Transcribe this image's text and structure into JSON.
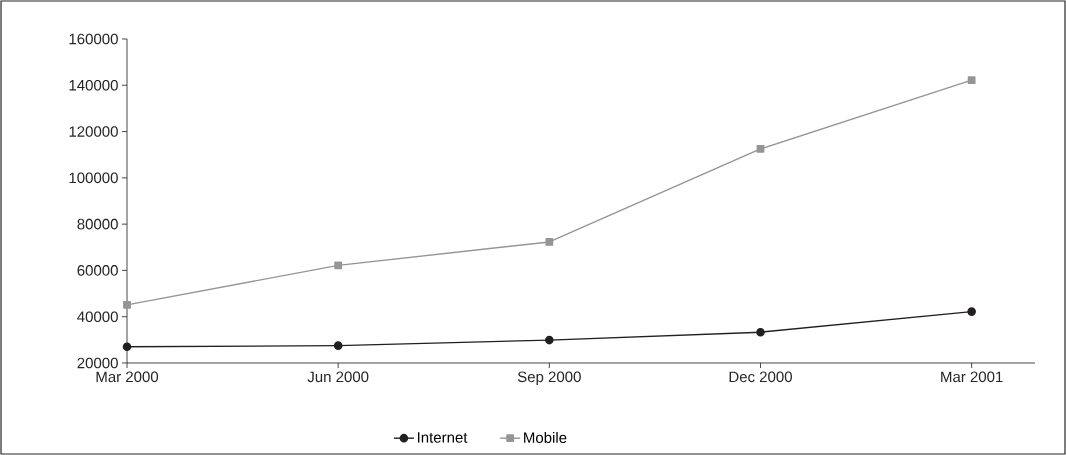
{
  "chart_data": {
    "type": "line",
    "categories": [
      "Mar 2000",
      "Jun 2000",
      "Sep 2000",
      "Dec 2000",
      "Mar 2001"
    ],
    "series": [
      {
        "name": "Internet",
        "color": "#231f20",
        "marker": "circle",
        "values": [
          27000,
          27500,
          29900,
          33300,
          42200
        ]
      },
      {
        "name": "Mobile",
        "color": "#939598",
        "marker": "square",
        "values": [
          45100,
          62200,
          72300,
          112500,
          142200
        ]
      }
    ],
    "ylim": [
      20000,
      160000
    ],
    "yticks": [
      20000,
      40000,
      60000,
      80000,
      100000,
      120000,
      140000,
      160000
    ],
    "legend": "bottom",
    "line_style": "solid"
  }
}
